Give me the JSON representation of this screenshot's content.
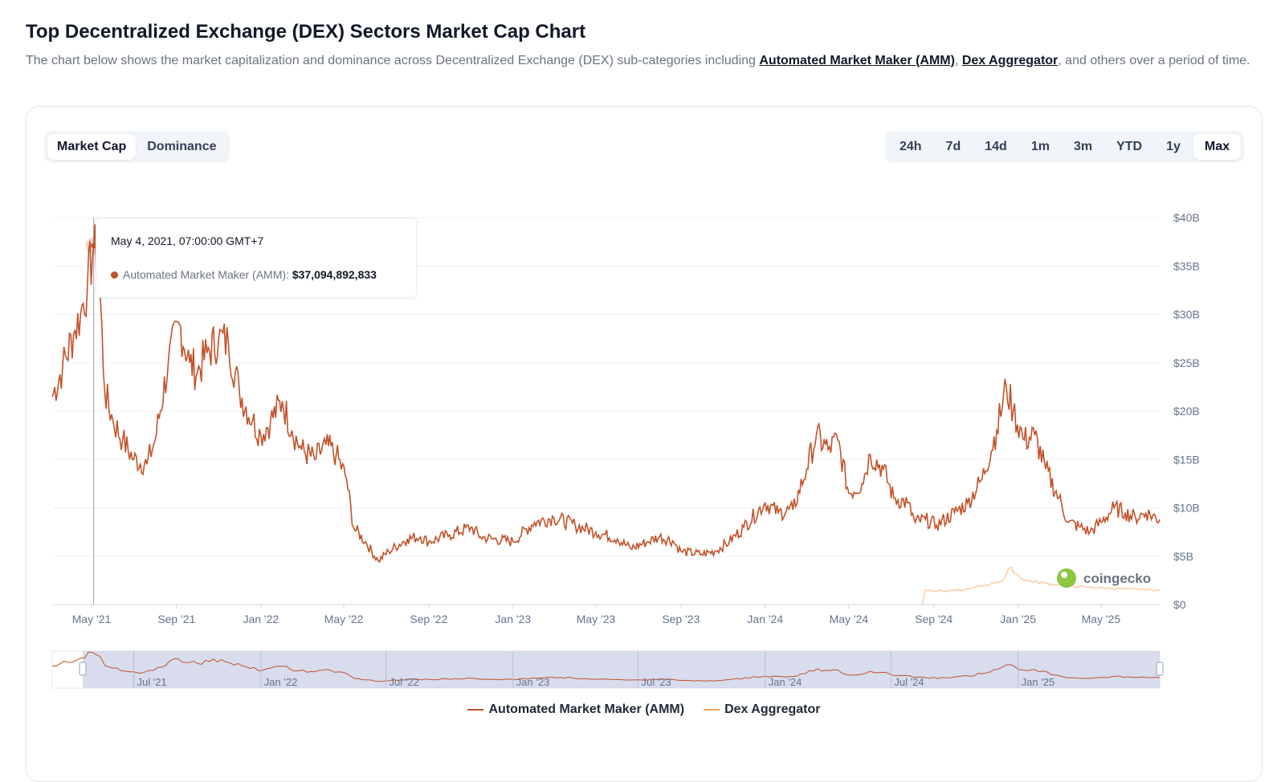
{
  "header": {
    "title": "Top Decentralized Exchange (DEX) Sectors Market Cap Chart",
    "desc_pre": "The chart below shows the market capitalization and dominance across Decentralized Exchange (DEX) sub-categories including ",
    "link_amm": "Automated Market Maker (AMM)",
    "desc_sep": ", ",
    "link_aggr": "Dex Aggregator",
    "desc_post": ", and others over a period of time."
  },
  "view_tabs": [
    {
      "label": "Market Cap",
      "active": true
    },
    {
      "label": "Dominance",
      "active": false
    }
  ],
  "range_tabs": [
    {
      "label": "24h",
      "active": false
    },
    {
      "label": "7d",
      "active": false
    },
    {
      "label": "14d",
      "active": false
    },
    {
      "label": "1m",
      "active": false
    },
    {
      "label": "3m",
      "active": false
    },
    {
      "label": "YTD",
      "active": false
    },
    {
      "label": "1y",
      "active": false
    },
    {
      "label": "Max",
      "active": true
    }
  ],
  "tooltip": {
    "date": "May 4, 2021, 07:00:00 GMT+7",
    "series": "Automated Market Maker (AMM):",
    "value": "$37,094,892,833"
  },
  "watermark": "coingecko",
  "navigator_labels": [
    "Jul '21",
    "Jan '22",
    "Jul '22",
    "Jan '23",
    "Jul '23",
    "Jan '24",
    "Jul '24",
    "Jan '25"
  ],
  "chart_data": {
    "type": "line",
    "x_range": [
      "2021-03-05",
      "2025-07-25"
    ],
    "ylim": [
      0,
      40
    ],
    "y_ticks": [
      0,
      5,
      10,
      15,
      20,
      25,
      30,
      35,
      40
    ],
    "y_tick_labels": [
      "$0",
      "$5B",
      "$10B",
      "$15B",
      "$20B",
      "$25B",
      "$30B",
      "$35B",
      "$40B"
    ],
    "x_ticks": [
      "2021-05-01",
      "2021-09-01",
      "2022-01-01",
      "2022-05-01",
      "2022-09-01",
      "2023-01-01",
      "2023-05-01",
      "2023-09-01",
      "2024-01-01",
      "2024-05-01",
      "2024-09-01",
      "2025-01-01",
      "2025-05-01"
    ],
    "x_tick_labels": [
      "May '21",
      "Sep '21",
      "Jan '22",
      "May '22",
      "Sep '22",
      "Jan '23",
      "May '23",
      "Sep '23",
      "Jan '24",
      "May '24",
      "Sep '24",
      "Jan '25",
      "May '25"
    ],
    "grid": true,
    "legend_position": "bottom-center",
    "series": [
      {
        "name": "Automated Market Maker (AMM)",
        "color": "#c2522a",
        "points": [
          [
            "2021-03-05",
            21.5
          ],
          [
            "2021-03-20",
            24.5
          ],
          [
            "2021-04-05",
            28
          ],
          [
            "2021-04-15",
            30
          ],
          [
            "2021-04-25",
            33
          ],
          [
            "2021-05-04",
            37.1
          ],
          [
            "2021-05-12",
            34
          ],
          [
            "2021-05-20",
            22
          ],
          [
            "2021-06-01",
            19
          ],
          [
            "2021-06-15",
            17
          ],
          [
            "2021-07-01",
            15
          ],
          [
            "2021-07-20",
            14.5
          ],
          [
            "2021-08-01",
            17
          ],
          [
            "2021-08-20",
            25
          ],
          [
            "2021-09-05",
            29
          ],
          [
            "2021-09-20",
            25
          ],
          [
            "2021-10-01",
            24
          ],
          [
            "2021-10-15",
            26
          ],
          [
            "2021-11-01",
            27.5
          ],
          [
            "2021-11-15",
            27
          ],
          [
            "2021-12-01",
            22
          ],
          [
            "2021-12-20",
            19
          ],
          [
            "2022-01-01",
            17.5
          ],
          [
            "2022-01-15",
            19
          ],
          [
            "2022-02-01",
            21
          ],
          [
            "2022-02-15",
            18
          ],
          [
            "2022-03-01",
            16
          ],
          [
            "2022-03-20",
            15
          ],
          [
            "2022-04-05",
            16.5
          ],
          [
            "2022-04-20",
            15.5
          ],
          [
            "2022-05-05",
            13
          ],
          [
            "2022-05-15",
            8
          ],
          [
            "2022-06-01",
            6.5
          ],
          [
            "2022-06-20",
            4.5
          ],
          [
            "2022-07-05",
            5.5
          ],
          [
            "2022-08-01",
            6.8
          ],
          [
            "2022-08-20",
            7
          ],
          [
            "2022-09-01",
            6.5
          ],
          [
            "2022-10-01",
            7.2
          ],
          [
            "2022-11-01",
            8
          ],
          [
            "2022-11-15",
            7
          ],
          [
            "2022-12-01",
            6.8
          ],
          [
            "2023-01-01",
            6.5
          ],
          [
            "2023-02-01",
            8.5
          ],
          [
            "2023-03-01",
            9
          ],
          [
            "2023-04-01",
            8.2
          ],
          [
            "2023-05-01",
            7.5
          ],
          [
            "2023-06-01",
            6.8
          ],
          [
            "2023-06-20",
            5.8
          ],
          [
            "2023-07-15",
            6.5
          ],
          [
            "2023-08-01",
            7
          ],
          [
            "2023-08-20",
            6.6
          ],
          [
            "2023-09-01",
            5.5
          ],
          [
            "2023-10-01",
            5.2
          ],
          [
            "2023-10-20",
            5.5
          ],
          [
            "2023-11-10",
            6.5
          ],
          [
            "2023-12-01",
            8
          ],
          [
            "2024-01-01",
            10.5
          ],
          [
            "2024-01-20",
            9.5
          ],
          [
            "2024-02-10",
            9.8
          ],
          [
            "2024-03-01",
            14
          ],
          [
            "2024-03-15",
            17.5
          ],
          [
            "2024-04-01",
            16
          ],
          [
            "2024-04-15",
            17
          ],
          [
            "2024-05-01",
            11.5
          ],
          [
            "2024-05-20",
            12.5
          ],
          [
            "2024-06-01",
            15.5
          ],
          [
            "2024-06-20",
            14
          ],
          [
            "2024-07-05",
            11
          ],
          [
            "2024-07-25",
            10.5
          ],
          [
            "2024-08-05",
            8.5
          ],
          [
            "2024-08-20",
            8.8
          ],
          [
            "2024-09-05",
            8.2
          ],
          [
            "2024-10-01",
            9.5
          ],
          [
            "2024-10-20",
            10.5
          ],
          [
            "2024-11-10",
            13
          ],
          [
            "2024-12-01",
            18
          ],
          [
            "2024-12-15",
            22.5
          ],
          [
            "2024-12-25",
            20
          ],
          [
            "2025-01-10",
            17
          ],
          [
            "2025-01-25",
            17.5
          ],
          [
            "2025-02-10",
            14
          ],
          [
            "2025-03-01",
            11
          ],
          [
            "2025-03-15",
            8.5
          ],
          [
            "2025-04-01",
            8
          ],
          [
            "2025-04-15",
            7.5
          ],
          [
            "2025-05-01",
            8.5
          ],
          [
            "2025-05-20",
            10
          ],
          [
            "2025-06-05",
            9.5
          ],
          [
            "2025-06-20",
            9
          ],
          [
            "2025-07-05",
            9.5
          ],
          [
            "2025-07-25",
            8.8
          ]
        ]
      },
      {
        "name": "Dex Aggregator",
        "color": "#f4a259",
        "points": [
          [
            "2024-08-15",
            0
          ],
          [
            "2024-08-20",
            1.5
          ],
          [
            "2024-09-15",
            1.4
          ],
          [
            "2024-10-15",
            1.5
          ],
          [
            "2024-11-15",
            2
          ],
          [
            "2024-12-10",
            2.5
          ],
          [
            "2024-12-20",
            3.8
          ],
          [
            "2025-01-10",
            2.5
          ],
          [
            "2025-02-10",
            2.2
          ],
          [
            "2025-03-10",
            2
          ],
          [
            "2025-04-10",
            1.8
          ],
          [
            "2025-05-10",
            1.7
          ],
          [
            "2025-06-10",
            1.6
          ],
          [
            "2025-07-25",
            1.5
          ]
        ]
      }
    ]
  }
}
